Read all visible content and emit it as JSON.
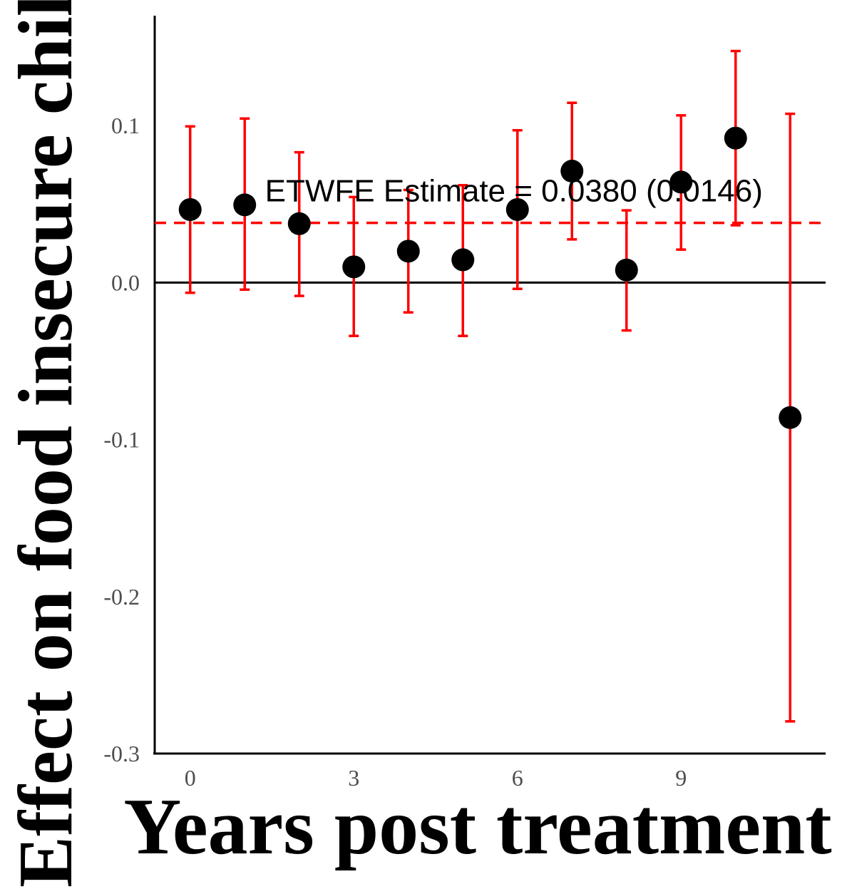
{
  "chart_data": {
    "type": "scatter",
    "xlabel": "Years post treatment",
    "ylabel": "Effect on food insecure children",
    "xlim": [
      -0.65,
      11.65
    ],
    "ylim": [
      -0.3,
      0.17
    ],
    "x_ticks": [
      0,
      3,
      6,
      9
    ],
    "x_tick_labels": [
      "0",
      "3",
      "6",
      "9"
    ],
    "y_ticks": [
      -0.3,
      -0.2,
      -0.1,
      0.0,
      0.1
    ],
    "y_tick_labels": [
      "-0.3",
      "-0.2",
      "-0.1",
      "0.0",
      "0.1"
    ],
    "grid": false,
    "series": [
      {
        "x": [
          0,
          1,
          2,
          3,
          4,
          5,
          6,
          7,
          8,
          9,
          10,
          11
        ],
        "y": [
          0.0465,
          0.0495,
          0.0375,
          0.01,
          0.02,
          0.0145,
          0.0465,
          0.071,
          0.008,
          0.064,
          0.092,
          -0.086
        ],
        "lower": [
          -0.0065,
          -0.0045,
          -0.0085,
          -0.034,
          -0.019,
          -0.034,
          -0.004,
          0.0275,
          -0.0305,
          0.021,
          0.0365,
          -0.2795
        ],
        "upper": [
          0.0995,
          0.1045,
          0.083,
          0.0545,
          0.059,
          0.062,
          0.097,
          0.1145,
          0.046,
          0.1065,
          0.1475,
          0.1075
        ]
      }
    ],
    "reference_lines": {
      "zero": 0.0,
      "estimate": 0.038
    },
    "annotation": {
      "text": "ETWFE Estimate = 0.0380 (0.0146)",
      "x": 6,
      "y": 0.059
    },
    "colors": {
      "points": "#000000",
      "error_bars": "#ff0000",
      "estimate_line": "#ff0000",
      "zero_line": "#000000"
    }
  }
}
